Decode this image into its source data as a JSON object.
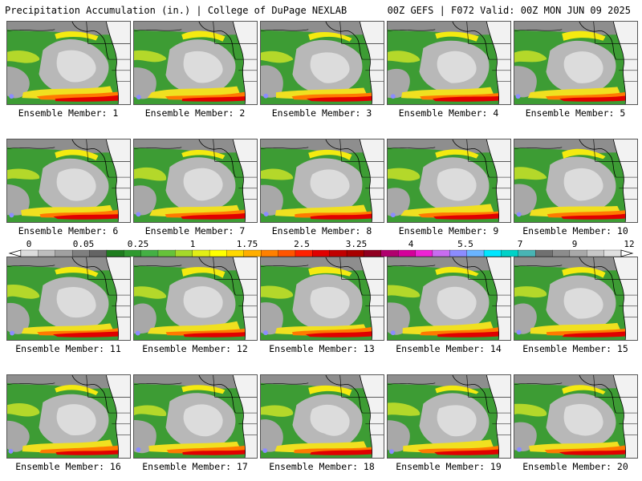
{
  "header": {
    "left_title": "Precipitation Accumulation (in.) | College of DuPage NEXLAB",
    "right_title": "00Z GEFS | F072 Valid: 00Z MON JUN 09 2025"
  },
  "legend": {
    "tick_labels": [
      "0",
      "0.05",
      "0.25",
      "1",
      "1.75",
      "2.5",
      "3.25",
      "4",
      "5.5",
      "7",
      "9",
      "12"
    ],
    "colors": [
      "#dcdcdc",
      "#bdbdbd",
      "#a0a0a0",
      "#7f7f7f",
      "#646464",
      "#1e7d1e",
      "#2f9a2f",
      "#44b044",
      "#66c23a",
      "#a6d82a",
      "#e2ee16",
      "#ffff00",
      "#ffd800",
      "#ffae00",
      "#ff8000",
      "#ff5500",
      "#ff2000",
      "#e00000",
      "#c00000",
      "#a80000",
      "#900020",
      "#b0006e",
      "#d4009a",
      "#ee22d4",
      "#c86cf0",
      "#8c8cff",
      "#6ab4ff",
      "#00e6ff",
      "#00d2c8",
      "#48b4b4",
      "#707070",
      "#8c8c8c",
      "#a8a8a8",
      "#c8c8c8",
      "#e0e0e0"
    ]
  },
  "members": [
    {
      "label": "Ensemble Member: 1"
    },
    {
      "label": "Ensemble Member: 2"
    },
    {
      "label": "Ensemble Member: 3"
    },
    {
      "label": "Ensemble Member: 4"
    },
    {
      "label": "Ensemble Member: 5"
    },
    {
      "label": "Ensemble Member: 6"
    },
    {
      "label": "Ensemble Member: 7"
    },
    {
      "label": "Ensemble Member: 8"
    },
    {
      "label": "Ensemble Member: 9"
    },
    {
      "label": "Ensemble Member: 10"
    },
    {
      "label": "Ensemble Member: 11"
    },
    {
      "label": "Ensemble Member: 12"
    },
    {
      "label": "Ensemble Member: 13"
    },
    {
      "label": "Ensemble Member: 14"
    },
    {
      "label": "Ensemble Member: 15"
    },
    {
      "label": "Ensemble Member: 16"
    },
    {
      "label": "Ensemble Member: 17"
    },
    {
      "label": "Ensemble Member: 18"
    },
    {
      "label": "Ensemble Member: 19"
    },
    {
      "label": "Ensemble Member: 20"
    }
  ]
}
